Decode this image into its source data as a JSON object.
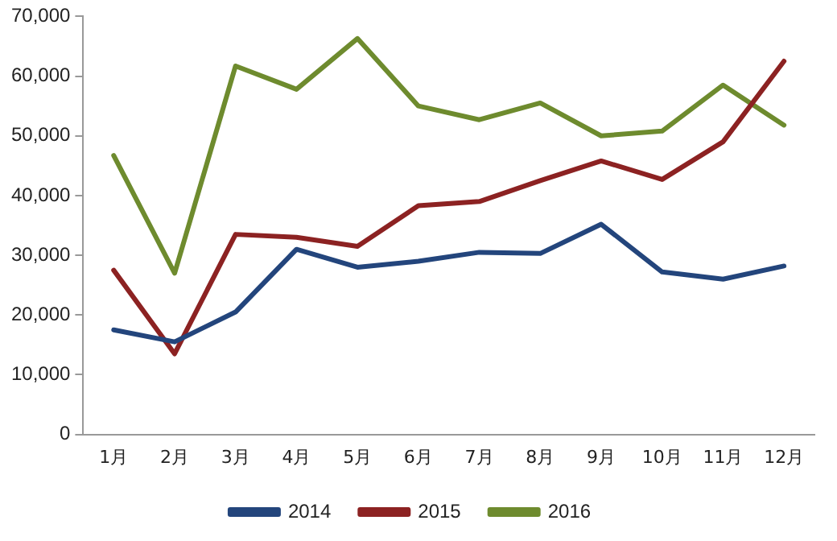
{
  "chart_data": {
    "type": "line",
    "categories": [
      "1月",
      "2月",
      "3月",
      "4月",
      "5月",
      "6月",
      "7月",
      "8月",
      "9月",
      "10月",
      "11月",
      "12月"
    ],
    "series": [
      {
        "name": "2014",
        "color": "#23457c",
        "values": [
          17500,
          15500,
          20500,
          31000,
          28000,
          29000,
          30500,
          30300,
          35200,
          27200,
          26000,
          28200
        ]
      },
      {
        "name": "2015",
        "color": "#8c2222",
        "values": [
          27500,
          13500,
          33500,
          33000,
          31500,
          38300,
          39000,
          42500,
          45800,
          42700,
          49000,
          62500
        ]
      },
      {
        "name": "2016",
        "color": "#6e8b2e",
        "values": [
          46700,
          27000,
          61700,
          57800,
          66300,
          55000,
          52700,
          55500,
          50000,
          50800,
          58500,
          51800
        ]
      }
    ],
    "ylim": [
      0,
      70000
    ],
    "yticks": [
      {
        "value": 0,
        "label": "0"
      },
      {
        "value": 10000,
        "label": "10,000"
      },
      {
        "value": 20000,
        "label": "20,000"
      },
      {
        "value": 30000,
        "label": "30,000"
      },
      {
        "value": 40000,
        "label": "40,000"
      },
      {
        "value": 50000,
        "label": "50,000"
      },
      {
        "value": 60000,
        "label": "60,000"
      },
      {
        "value": 70000,
        "label": "70,000"
      }
    ],
    "grid": false,
    "legend": "bottom",
    "marker": "none",
    "line_style": "solid"
  }
}
